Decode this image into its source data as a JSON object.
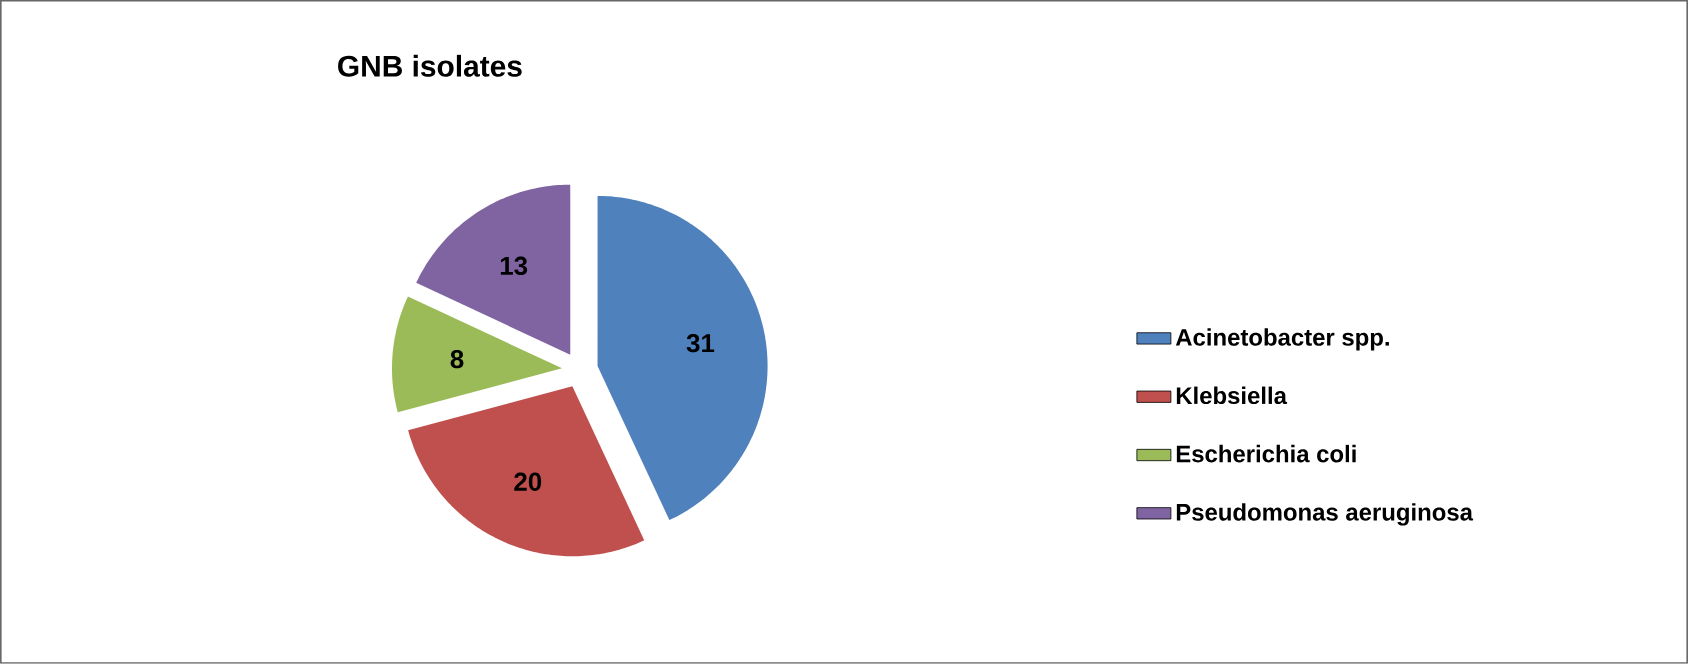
{
  "chart_data": {
    "type": "pie",
    "title": "GNB isolates",
    "categories": [
      "Acinetobacter spp.",
      "Klebsiella",
      "Escherichia coli",
      "Pseudomonas aeruginosa"
    ],
    "values": [
      31,
      20,
      8,
      13
    ],
    "colors": [
      "#4f81bd",
      "#c0504d",
      "#9bbb59",
      "#8064a2"
    ],
    "data_labels": true,
    "legend": "right"
  }
}
